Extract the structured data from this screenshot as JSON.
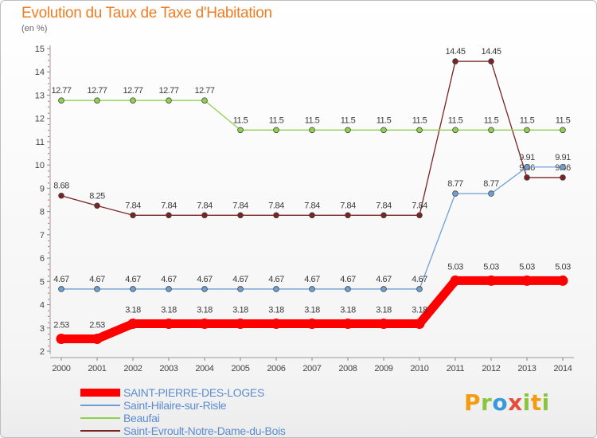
{
  "header": {
    "title": "Evolution du Taux de Taxe d'Habitation",
    "subtitle": "(en %)"
  },
  "logo": {
    "text": "Proxiti",
    "colors": [
      "#f39c12",
      "#3a9ad9",
      "#8bc53f",
      "#e74c3c"
    ]
  },
  "chart_data": {
    "type": "line",
    "title": "Evolution du Taux de Taxe d'Habitation",
    "subtitle": "(en %)",
    "xlabel": "",
    "ylabel": "(en %)",
    "ylim": [
      2,
      15
    ],
    "yticks": [
      "2",
      "3",
      "4",
      "5",
      "6",
      "7",
      "8",
      "9",
      "10",
      "11",
      "12",
      "13",
      "14",
      "15"
    ],
    "categories": [
      "2000",
      "2001",
      "2002",
      "2003",
      "2004",
      "2005",
      "2006",
      "2007",
      "2008",
      "2009",
      "2010",
      "2011",
      "2012",
      "2013",
      "2014"
    ],
    "grid": false,
    "series": [
      {
        "name": "Saint-Evroult-Notre-Dame-du-Bois",
        "color": "#7a2323",
        "values": [
          8.68,
          8.25,
          7.84,
          7.84,
          7.84,
          7.84,
          7.84,
          7.84,
          7.84,
          7.84,
          7.84,
          14.45,
          14.45,
          9.46,
          9.46
        ],
        "labels": [
          "8.68",
          "8.25",
          "7.84",
          "7.84",
          "7.84",
          "7.84",
          "7.84",
          "7.84",
          "7.84",
          "7.84",
          "7.84",
          "14.45",
          "14.45",
          "9.46",
          "9.46"
        ]
      },
      {
        "name": "Beaufai",
        "color": "#8fd14f",
        "values": [
          12.77,
          12.77,
          12.77,
          12.77,
          12.77,
          11.5,
          11.5,
          11.5,
          11.5,
          11.5,
          11.5,
          11.5,
          11.5,
          11.5,
          11.5
        ],
        "labels": [
          "12.77",
          "12.77",
          "12.77",
          "12.77",
          "12.77",
          "11.5",
          "11.5",
          "11.5",
          "11.5",
          "11.5",
          "11.5",
          "11.5",
          "11.5",
          "11.5",
          "11.5"
        ]
      },
      {
        "name": "Saint-Hilaire-sur-Risle",
        "color": "#6f9fd2",
        "values": [
          4.67,
          4.67,
          4.67,
          4.67,
          4.67,
          4.67,
          4.67,
          4.67,
          4.67,
          4.67,
          4.67,
          8.77,
          8.77,
          9.91,
          9.91
        ],
        "labels": [
          "4.67",
          "4.67",
          "4.67",
          "4.67",
          "4.67",
          "4.67",
          "4.67",
          "4.67",
          "4.67",
          "4.67",
          "4.67",
          "8.77",
          "8.77",
          "9.91",
          "9.91"
        ]
      },
      {
        "name": "SAINT-PIERRE-DES-LOGES",
        "color": "#ff0000",
        "highlight": true,
        "values": [
          2.53,
          2.53,
          3.18,
          3.18,
          3.18,
          3.18,
          3.18,
          3.18,
          3.18,
          3.18,
          3.18,
          5.03,
          5.03,
          5.03,
          5.03
        ],
        "labels": [
          "2.53",
          "2.53",
          "3.18",
          "3.18",
          "3.18",
          "3.18",
          "3.18",
          "3.18",
          "3.18",
          "3.18",
          "3.18",
          "5.03",
          "5.03",
          "5.03",
          "5.03"
        ]
      }
    ],
    "legend": [
      "SAINT-PIERRE-DES-LOGES",
      "Saint-Hilaire-sur-Risle",
      "Beaufai",
      "Saint-Evroult-Notre-Dame-du-Bois"
    ]
  }
}
